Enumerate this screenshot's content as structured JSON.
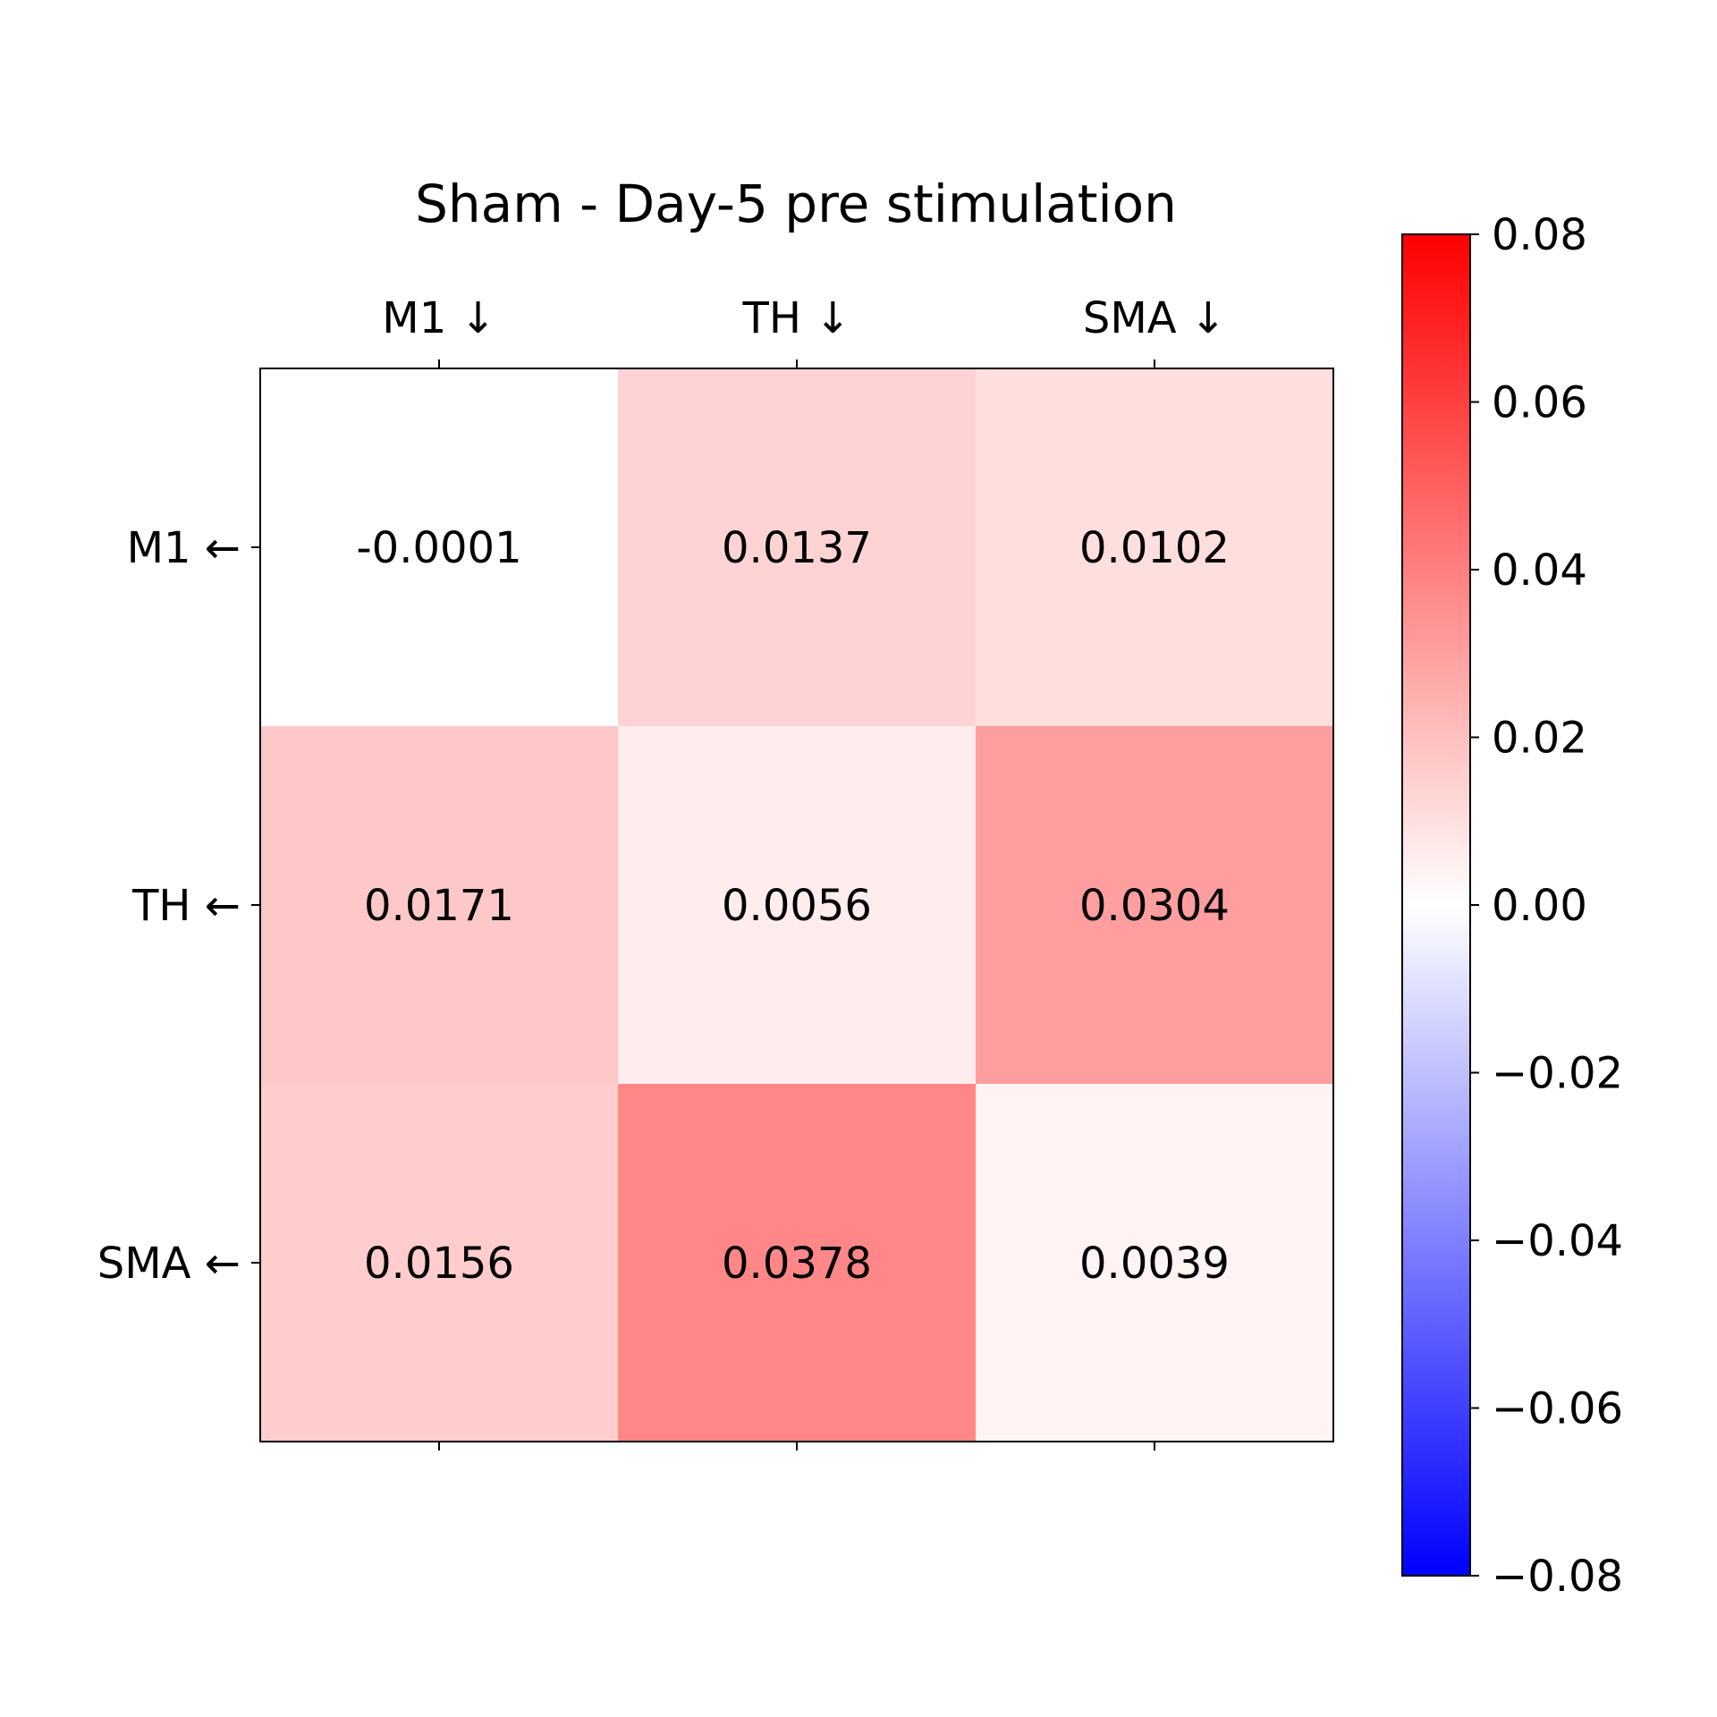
{
  "chart_data": {
    "type": "heatmap",
    "title": "Sham - Day-5 pre stimulation",
    "x_labels": [
      "M1 ↓",
      "TH ↓",
      "SMA ↓"
    ],
    "y_labels": [
      "M1 ←",
      "TH ←",
      "SMA ←"
    ],
    "cells": [
      [
        "-0.0001",
        "0.0137",
        "0.0102"
      ],
      [
        "0.0171",
        "0.0056",
        "0.0304"
      ],
      [
        "0.0156",
        "0.0378",
        "0.0039"
      ]
    ],
    "values": [
      [
        -0.0001,
        0.0137,
        0.0102
      ],
      [
        0.0171,
        0.0056,
        0.0304
      ],
      [
        0.0156,
        0.0378,
        0.0039
      ]
    ],
    "colormap": "bwr",
    "vmin": -0.08,
    "vmax": 0.08,
    "colorbar_ticks": [
      "0.08",
      "0.06",
      "0.04",
      "0.02",
      "0.00",
      "−0.02",
      "−0.04",
      "−0.06",
      "−0.08"
    ],
    "colorbar_tick_values": [
      0.08,
      0.06,
      0.04,
      0.02,
      0.0,
      -0.02,
      -0.04,
      -0.06,
      -0.08
    ],
    "colors": {
      "low": "#0000ff",
      "mid": "#ffffff",
      "high": "#ff0000"
    }
  }
}
